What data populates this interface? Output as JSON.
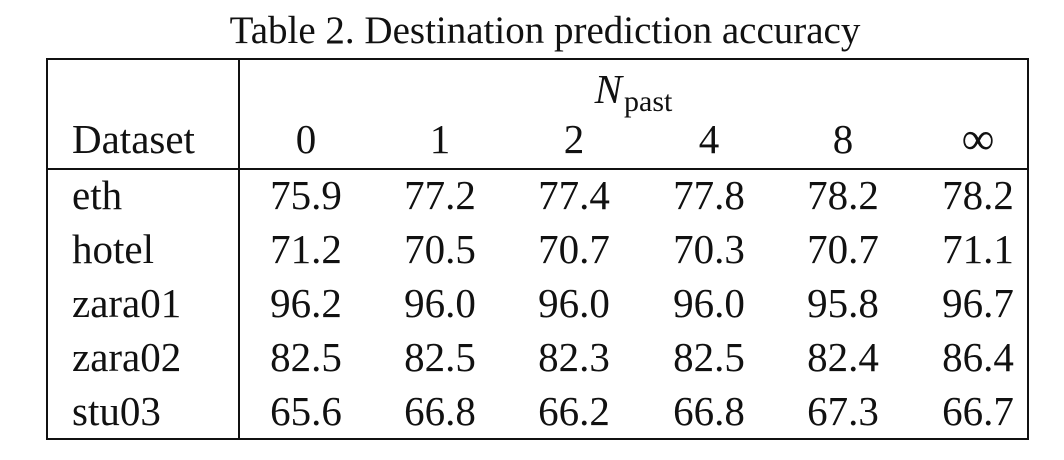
{
  "caption": "Table 2. Destination prediction accuracy",
  "table": {
    "group_header": {
      "symbol": "N",
      "subscript": "past"
    },
    "row_header_label": "Dataset",
    "columns": [
      "0",
      "1",
      "2",
      "4",
      "8",
      "∞"
    ],
    "rows": [
      {
        "dataset": "eth",
        "values": [
          "75.9",
          "77.2",
          "77.4",
          "77.8",
          "78.2",
          "78.2"
        ]
      },
      {
        "dataset": "hotel",
        "values": [
          "71.2",
          "70.5",
          "70.7",
          "70.3",
          "70.7",
          "71.1"
        ]
      },
      {
        "dataset": "zara01",
        "values": [
          "96.2",
          "96.0",
          "96.0",
          "96.0",
          "95.8",
          "96.7"
        ]
      },
      {
        "dataset": "zara02",
        "values": [
          "82.5",
          "82.5",
          "82.3",
          "82.5",
          "82.4",
          "86.4"
        ]
      },
      {
        "dataset": "stu03",
        "values": [
          "65.6",
          "66.8",
          "66.2",
          "66.8",
          "67.3",
          "66.7"
        ]
      }
    ]
  }
}
